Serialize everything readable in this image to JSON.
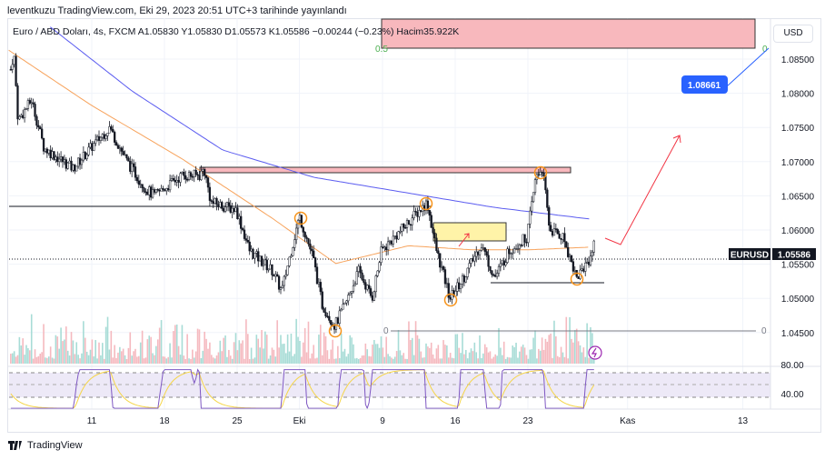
{
  "header": {
    "published": "leventkuzu TradingView.com, Eki 29, 2023 20:51 UTC+3 tarihinde yayınlandı",
    "legend": "Euro / ABD Doları, 4s, FXCM  A1.05830  Y1.05830  D1.05573  K1.05586  −0.00244 (−0.23%)  Hacim35.922K"
  },
  "currency_button": "USD",
  "footer": {
    "brand": "TradingView",
    "logo_icon": "tradingview-logo-icon"
  },
  "colors": {
    "up": "#131722",
    "down": "#131722",
    "ma_long": "#5b5cf0",
    "ma_short": "#f7a35c",
    "rsi": "#7e57c2",
    "rsi_signal": "#f5d547",
    "vol_up": "#a7dcd6",
    "vol_down": "#f5b9bf",
    "red_arrow": "#f23645",
    "blue_label": "#2962ff"
  },
  "chart_data": {
    "type": "candlestick",
    "symbol": "EURUSD",
    "last_price": "1.05586",
    "ylim": [
      1.0415,
      1.0895
    ],
    "y_ticks": [
      "1.08500",
      "1.08000",
      "1.07500",
      "1.07000",
      "1.06500",
      "1.06000",
      "1.05500",
      "1.05000",
      "1.04500"
    ],
    "y_tick_values": [
      1.085,
      1.08,
      1.075,
      1.07,
      1.065,
      1.06,
      1.055,
      1.05,
      1.045
    ],
    "x_ticks": [
      {
        "label": "11",
        "day": 0
      },
      {
        "label": "18",
        "day": 7
      },
      {
        "label": "25",
        "day": 14
      },
      {
        "label": "Eki",
        "day": 20
      },
      {
        "label": "9",
        "day": 28
      },
      {
        "label": "16",
        "day": 35
      },
      {
        "label": "23",
        "day": 42
      },
      {
        "label": "Kas",
        "day": 51.6
      },
      {
        "label": "13",
        "day": 62.7
      }
    ],
    "xlim_days": [
      -8,
      65
    ],
    "price_path": [
      [
        -7.8,
        1.0835
      ],
      [
        -7.5,
        1.086
      ],
      [
        -7.1,
        1.076
      ],
      [
        -5.8,
        1.079
      ],
      [
        -4.6,
        1.072
      ],
      [
        -1.8,
        1.069
      ],
      [
        -0.1,
        1.072
      ],
      [
        1.7,
        1.075
      ],
      [
        3.4,
        1.07
      ],
      [
        5.2,
        1.066
      ],
      [
        6.0,
        1.065
      ],
      [
        8.7,
        1.068
      ],
      [
        10.4,
        1.068
      ],
      [
        10.8,
        1.069
      ],
      [
        11.5,
        1.064
      ],
      [
        13.9,
        1.063
      ],
      [
        15.2,
        1.057
      ],
      [
        17.4,
        1.054
      ],
      [
        18.3,
        1.051
      ],
      [
        19.2,
        1.057
      ],
      [
        20.0,
        1.062
      ],
      [
        21.3,
        1.056
      ],
      [
        22.2,
        1.049
      ],
      [
        23.4,
        1.046
      ],
      [
        24.4,
        1.049
      ],
      [
        25.7,
        1.054
      ],
      [
        27.0,
        1.05
      ],
      [
        27.9,
        1.057
      ],
      [
        29.2,
        1.059
      ],
      [
        31.0,
        1.062
      ],
      [
        32.3,
        1.064
      ],
      [
        33.2,
        1.057
      ],
      [
        34.5,
        1.05
      ],
      [
        35.8,
        1.053
      ],
      [
        37.5,
        1.058
      ],
      [
        38.8,
        1.053
      ],
      [
        40.2,
        1.057
      ],
      [
        41.9,
        1.059
      ],
      [
        42.8,
        1.068
      ],
      [
        43.4,
        1.069
      ],
      [
        44.1,
        1.06
      ],
      [
        45.4,
        1.059
      ],
      [
        46.7,
        1.053
      ],
      [
        48.0,
        1.056
      ],
      [
        48.5,
        1.0586
      ]
    ],
    "ma_long": [
      [
        -4,
        1.0897
      ],
      [
        3.9,
        1.0803
      ],
      [
        12.6,
        1.0717
      ],
      [
        21.4,
        1.0677
      ],
      [
        30.1,
        1.0655
      ],
      [
        38.8,
        1.0633
      ],
      [
        48,
        1.0616
      ]
    ],
    "ma_short": [
      [
        -8,
        1.0863
      ],
      [
        -0.1,
        1.0783
      ],
      [
        8.7,
        1.0704
      ],
      [
        17.4,
        1.0617
      ],
      [
        23.5,
        1.0551
      ],
      [
        30.5,
        1.0577
      ],
      [
        36.7,
        1.0571
      ],
      [
        42,
        1.0571
      ],
      [
        48,
        1.0575
      ]
    ],
    "annotations": {
      "target_label": "1.08661",
      "fib_top": "0.5",
      "fib_zero_top": "0",
      "fib_zero_left": "0",
      "fib_zero_right": "0"
    },
    "rsi": {
      "ticks": [
        "80.00",
        "40.00"
      ],
      "levels": [
        80,
        40
      ]
    }
  }
}
